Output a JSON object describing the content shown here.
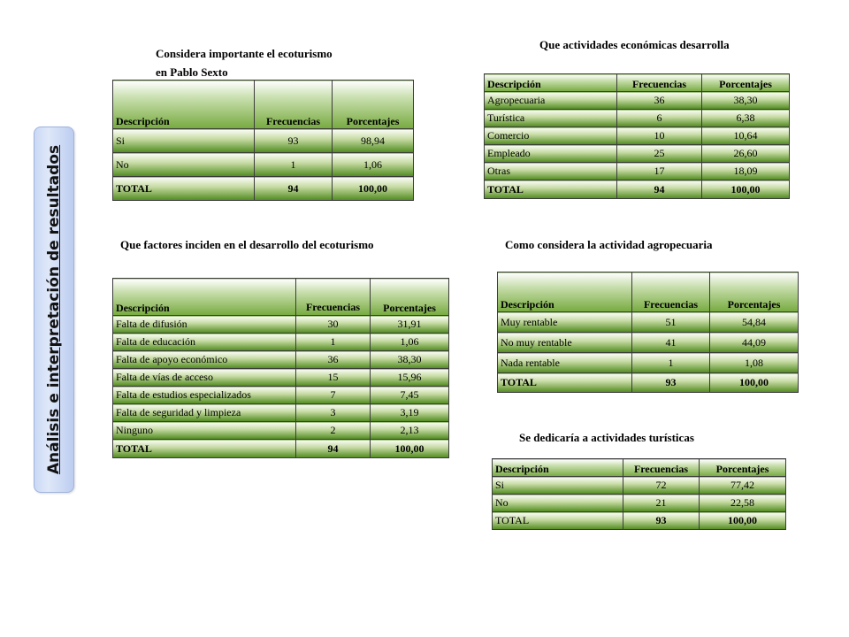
{
  "side_title": "Análisis e interpretación de resultados",
  "tables": {
    "t1": {
      "title": "Considera importante el ecoturismo en Pablo Sexto",
      "headers": [
        "Descripción",
        "Frecuencias",
        "Porcentajes"
      ],
      "rows": [
        [
          "Si",
          "93",
          "98,94"
        ],
        [
          "No",
          "1",
          "1,06"
        ],
        [
          "TOTAL",
          "94",
          "100,00"
        ]
      ]
    },
    "t2": {
      "title": "Que actividades económicas desarrolla",
      "headers": [
        "Descripción",
        "Frecuencias",
        "Porcentajes"
      ],
      "rows": [
        [
          "Agropecuaria",
          "36",
          "38,30"
        ],
        [
          "Turística",
          "6",
          "6,38"
        ],
        [
          "Comercio",
          "10",
          "10,64"
        ],
        [
          "Empleado",
          "25",
          "26,60"
        ],
        [
          "Otras",
          "17",
          "18,09"
        ],
        [
          "TOTAL",
          "94",
          "100,00"
        ]
      ]
    },
    "t3": {
      "title": "Que factores  inciden en el  desarrollo del ecoturismo",
      "headers": [
        "Descripción",
        "Frecuencias",
        "Porcentajes"
      ],
      "rows": [
        [
          "Falta de difusión",
          "30",
          "31,91"
        ],
        [
          "Falta de educación",
          "1",
          "1,06"
        ],
        [
          "Falta de apoyo económico",
          "36",
          "38,30"
        ],
        [
          "Falta de vías de acceso",
          "15",
          "15,96"
        ],
        [
          "Falta de estudios especializados",
          "7",
          "7,45"
        ],
        [
          "Falta de seguridad y limpieza",
          "3",
          "3,19"
        ],
        [
          "Ninguno",
          "2",
          "2,13"
        ],
        [
          "TOTAL",
          "94",
          "100,00"
        ]
      ]
    },
    "t4": {
      "title": "Como considera la actividad agropecuaria",
      "headers": [
        "Descripción",
        "Frecuencias",
        "Porcentajes"
      ],
      "rows": [
        [
          "Muy rentable",
          "51",
          "54,84"
        ],
        [
          "No muy rentable",
          "41",
          "44,09"
        ],
        [
          "Nada rentable",
          "1",
          "1,08"
        ],
        [
          "TOTAL",
          "93",
          "100,00"
        ]
      ]
    },
    "t5": {
      "title": "Se dedicaría a actividades turísticas",
      "headers": [
        "Descripción",
        "Frecuencias",
        "Porcentajes"
      ],
      "rows": [
        [
          "Si",
          "72",
          "77,42"
        ],
        [
          "No",
          "21",
          "22,58"
        ],
        [
          "TOTAL",
          "93",
          "100,00"
        ]
      ]
    }
  }
}
